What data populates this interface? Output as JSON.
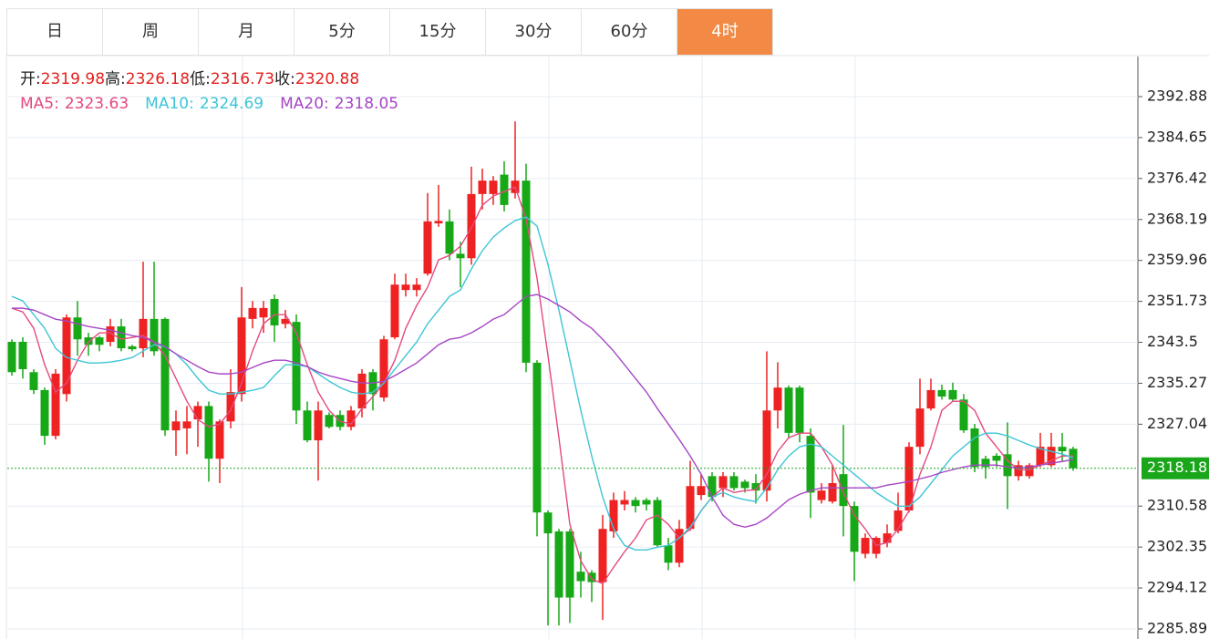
{
  "tabs": {
    "items": [
      "日",
      "周",
      "月",
      "5分",
      "15分",
      "30分",
      "60分",
      "4时"
    ],
    "active": 7
  },
  "chart_data": {
    "type": "candlestick",
    "info": [
      {
        "label": "开:",
        "value": 2319.98
      },
      {
        "label": "高:",
        "value": 2326.18
      },
      {
        "label": "低:",
        "value": 2316.73
      },
      {
        "label": "收:",
        "value": 2320.88
      }
    ],
    "info_color": "#e3201c",
    "open": [
      2343.6,
      2343.6,
      2337.5,
      2333.9,
      2324.7,
      2333.1,
      2348.5,
      2344.5,
      2344.5,
      2343.6,
      2346.7,
      2342.7,
      2342.3,
      2348.2,
      2348.2,
      2325.8,
      2326.2,
      2328.0,
      2330.7,
      2320.1,
      2327.6,
      2333.1,
      2348.2,
      2348.5,
      2352.2,
      2347.2,
      2347.6,
      2329.8,
      2323.8,
      2328.9,
      2328.9,
      2326.5,
      2330.2,
      2337.5,
      2332.4,
      2344.5,
      2354.0,
      2354.0,
      2357.3,
      2367.4,
      2367.8,
      2361.3,
      2360.4,
      2373.3,
      2373.3,
      2377.2,
      2373.5,
      2376.0,
      2339.4,
      2309.3,
      2305.5,
      2305.5,
      2297.4,
      2297.2,
      2295.3,
      2305.5,
      2310.9,
      2311.8,
      2311.8,
      2311.8,
      2302.7,
      2299.2,
      2306.0,
      2312.8,
      2316.6,
      2314.2,
      2316.6,
      2315.5,
      2315.2,
      2313.7,
      2329.8,
      2334.4,
      2334.4,
      2324.7,
      2311.8,
      2311.5,
      2317.0,
      2310.6,
      2301.0,
      2301.0,
      2303.2,
      2305.6,
      2309.7,
      2322.5,
      2330.2,
      2333.9,
      2333.9,
      2332.0,
      2326.2,
      2320.1,
      2320.7,
      2321.0,
      2316.6,
      2316.6,
      2318.8,
      2318.8,
      2322.5,
      2322.1
    ],
    "high": [
      2344.1,
      2344.5,
      2338.1,
      2334.4,
      2338.1,
      2349.1,
      2351.8,
      2345.4,
      2344.8,
      2348.2,
      2348.2,
      2343.0,
      2359.7,
      2359.7,
      2348.5,
      2329.8,
      2330.7,
      2331.6,
      2331.6,
      2328.0,
      2338.1,
      2354.6,
      2351.8,
      2351.8,
      2353.1,
      2350.0,
      2349.1,
      2331.6,
      2331.6,
      2329.4,
      2329.8,
      2330.7,
      2338.1,
      2338.1,
      2344.8,
      2357.3,
      2357.3,
      2356.4,
      2373.5,
      2375.1,
      2370.2,
      2363.7,
      2378.8,
      2378.4,
      2376.9,
      2379.9,
      2387.9,
      2379.4,
      2339.9,
      2309.7,
      2306.0,
      2306.0,
      2301.4,
      2297.7,
      2308.8,
      2313.3,
      2313.6,
      2312.4,
      2312.2,
      2312.4,
      2304.2,
      2307.8,
      2319.7,
      2317.0,
      2317.4,
      2317.4,
      2317.4,
      2315.9,
      2317.0,
      2341.7,
      2339.5,
      2334.8,
      2334.8,
      2326.2,
      2315.2,
      2318.8,
      2326.9,
      2311.5,
      2305.1,
      2304.5,
      2306.9,
      2313.3,
      2323.4,
      2336.2,
      2336.2,
      2335.0,
      2335.4,
      2333.1,
      2327.1,
      2320.7,
      2321.2,
      2327.4,
      2319.7,
      2319.2,
      2325.3,
      2325.3,
      2325.3,
      2322.5
    ],
    "low": [
      2336.8,
      2336.2,
      2333.1,
      2322.9,
      2324.0,
      2331.6,
      2340.8,
      2340.8,
      2341.7,
      2342.7,
      2341.7,
      2341.7,
      2340.5,
      2340.8,
      2324.7,
      2320.7,
      2321.0,
      2322.5,
      2315.5,
      2315.2,
      2326.2,
      2331.6,
      2346.3,
      2345.4,
      2343.6,
      2346.3,
      2327.1,
      2323.4,
      2315.7,
      2326.2,
      2325.8,
      2325.8,
      2328.4,
      2329.8,
      2331.6,
      2344.1,
      2352.7,
      2352.7,
      2356.9,
      2366.7,
      2360.0,
      2354.6,
      2359.1,
      2370.2,
      2371.1,
      2369.8,
      2372.4,
      2337.5,
      2304.5,
      2286.6,
      2286.6,
      2287.1,
      2292.2,
      2291.3,
      2287.7,
      2304.2,
      2309.7,
      2309.3,
      2309.7,
      2302.3,
      2297.7,
      2298.3,
      2305.6,
      2311.8,
      2311.5,
      2312.4,
      2313.7,
      2313.3,
      2311.1,
      2311.5,
      2326.2,
      2324.3,
      2323.4,
      2308.2,
      2311.1,
      2311.1,
      2304.5,
      2295.5,
      2300.1,
      2300.1,
      2302.3,
      2305.1,
      2309.3,
      2321.0,
      2329.8,
      2332.0,
      2331.6,
      2325.3,
      2317.4,
      2316.1,
      2318.4,
      2310.0,
      2315.7,
      2316.1,
      2318.4,
      2318.4,
      2319.7,
      2317.7
    ],
    "close": [
      2337.5,
      2338.1,
      2333.9,
      2324.7,
      2337.2,
      2348.5,
      2344.1,
      2343.0,
      2343.0,
      2346.7,
      2342.3,
      2342.1,
      2348.2,
      2341.7,
      2325.8,
      2327.6,
      2327.6,
      2330.7,
      2320.1,
      2327.6,
      2333.5,
      2348.5,
      2350.4,
      2350.4,
      2346.9,
      2348.2,
      2329.8,
      2323.8,
      2329.8,
      2326.5,
      2326.5,
      2329.8,
      2337.2,
      2333.1,
      2344.1,
      2355.1,
      2355.1,
      2355.1,
      2367.8,
      2367.9,
      2361.3,
      2360.4,
      2373.3,
      2376.0,
      2376.0,
      2371.1,
      2376.0,
      2339.4,
      2309.3,
      2305.1,
      2292.2,
      2292.2,
      2295.5,
      2295.3,
      2306.0,
      2311.8,
      2311.8,
      2310.6,
      2310.9,
      2302.7,
      2299.2,
      2306.0,
      2314.6,
      2314.6,
      2312.4,
      2316.6,
      2314.2,
      2314.2,
      2313.7,
      2329.8,
      2334.4,
      2325.3,
      2325.3,
      2313.3,
      2313.7,
      2315.2,
      2310.6,
      2301.4,
      2304.2,
      2304.2,
      2305.1,
      2309.7,
      2322.5,
      2330.2,
      2333.9,
      2332.6,
      2332.0,
      2325.8,
      2318.4,
      2318.4,
      2319.7,
      2316.6,
      2318.8,
      2318.8,
      2322.5,
      2322.5,
      2321.6,
      2318.18
    ],
    "up_color": "#ee2222",
    "down_color": "#17a817",
    "series": [
      {
        "name": "MA5:",
        "color": "#e4497f",
        "current": 2323.63,
        "values": [
          2350.35,
          2349.61,
          2346.31,
          2338.99,
          2333.49,
          2335.32,
          2339.9,
          2343.56,
          2345.4,
          2345.4,
          2344.11,
          2344.48,
          2344.85,
          2343.56,
          2340.82,
          2336.24,
          2331.65,
          2327.99,
          2326.52,
          2327.07,
          2329.82,
          2335.32,
          2341.73,
          2347.23,
          2349.06,
          2349.06,
          2345.4,
          2338.99,
          2333.49,
          2329.82,
          2327.62,
          2327.07,
          2330.19,
          2332.57,
          2335.32,
          2339.9,
          2346.31,
          2350.9,
          2354.57,
          2360.07,
          2360.98,
          2362.82,
          2366.48,
          2371.06,
          2372.9,
          2373.81,
          2374.73,
          2368.32,
          2356.4,
          2340.82,
          2324.32,
          2306.91,
          2299.58,
          2295.91,
          2294.99,
          2298.29,
          2301.41,
          2304.16,
          2307.82,
          2308.74,
          2306.91,
          2304.16,
          2305.99,
          2309.66,
          2312.41,
          2314.24,
          2313.32,
          2313.69,
          2313.87,
          2316.99,
          2321.57,
          2324.32,
          2325.24,
          2325.24,
          2322.49,
          2318.82,
          2313.32,
          2308.74,
          2305.99,
          2302.69,
          2303.24,
          2305.99,
          2309.66,
          2316.99,
          2322.49,
          2329.82,
          2331.65,
          2331.65,
          2329.82,
          2325.24,
          2322.49,
          2319.74,
          2317.9,
          2317.9,
          2318.82,
          2319.74,
          2320.65,
          2320.65
        ]
      },
      {
        "name": "MA10:",
        "color": "#3ec5d6",
        "current": 2324.69,
        "values": [
          2352.73,
          2351.82,
          2349.06,
          2346.31,
          2342.28,
          2340.45,
          2339.9,
          2339.35,
          2339.35,
          2339.53,
          2339.9,
          2340.45,
          2341.73,
          2343.01,
          2342.65,
          2341.18,
          2338.99,
          2336.24,
          2333.86,
          2333.12,
          2333.12,
          2333.49,
          2333.86,
          2334.41,
          2336.79,
          2338.99,
          2338.99,
          2338.62,
          2337.16,
          2335.69,
          2334.41,
          2333.49,
          2333.12,
          2333.49,
          2335.32,
          2338.07,
          2340.82,
          2343.56,
          2347.23,
          2349.98,
          2352.73,
          2354.02,
          2358.23,
          2361.9,
          2364.65,
          2366.48,
          2367.95,
          2368.69,
          2366.85,
          2359.15,
          2349.98,
          2339.9,
          2329.82,
          2320.65,
          2312.41,
          2305.99,
          2302.69,
          2301.77,
          2301.77,
          2302.32,
          2302.69,
          2304.16,
          2306.36,
          2309.66,
          2312.41,
          2313.32,
          2312.41,
          2311.86,
          2311.49,
          2314.24,
          2317.9,
          2320.65,
          2322.49,
          2323.04,
          2322.49,
          2320.65,
          2318.82,
          2316.99,
          2315.15,
          2313.32,
          2311.86,
          2310.57,
          2310.57,
          2312.41,
          2315.15,
          2317.9,
          2320.65,
          2322.49,
          2324.32,
          2325.24,
          2325.24,
          2324.69,
          2323.77,
          2322.86,
          2322.12,
          2321.57,
          2321.02,
          2320.29
        ]
      },
      {
        "name": "MA20:",
        "color": "#a646c6",
        "current": 2318.05,
        "values": [
          2350.35,
          2350.35,
          2349.98,
          2349.06,
          2348.15,
          2347.78,
          2347.23,
          2346.68,
          2346.31,
          2345.95,
          2345.4,
          2344.85,
          2344.48,
          2343.56,
          2342.65,
          2341.18,
          2339.9,
          2338.62,
          2337.52,
          2337.16,
          2337.16,
          2337.52,
          2338.44,
          2339.35,
          2339.9,
          2339.9,
          2339.35,
          2338.62,
          2337.52,
          2336.79,
          2336.24,
          2335.69,
          2335.32,
          2335.32,
          2335.69,
          2336.79,
          2338.07,
          2339.35,
          2341.18,
          2343.01,
          2344.11,
          2344.48,
          2345.4,
          2346.68,
          2348.15,
          2349.06,
          2350.9,
          2352.73,
          2353.1,
          2352.18,
          2350.9,
          2349.61,
          2347.78,
          2346.31,
          2344.11,
          2341.73,
          2338.99,
          2336.24,
          2333.49,
          2330.19,
          2327.07,
          2323.96,
          2320.65,
          2316.99,
          2312.41,
          2308.74,
          2306.91,
          2306.36,
          2306.91,
          2308.19,
          2310.02,
          2311.86,
          2312.96,
          2313.69,
          2314.24,
          2314.24,
          2314.24,
          2314.24,
          2314.24,
          2314.24,
          2314.79,
          2315.15,
          2315.52,
          2316.07,
          2316.62,
          2317.35,
          2317.9,
          2318.45,
          2318.82,
          2318.82,
          2318.82,
          2318.45,
          2318.27,
          2318.45,
          2318.82,
          2319.19,
          2319.55,
          2319.92
        ]
      }
    ],
    "last_price": 2318.18,
    "last_color": "#1aa61a",
    "ylim": [
      2283.87,
      2400.94
    ],
    "yticks": [
      2392.88,
      2384.65,
      2376.42,
      2368.19,
      2359.96,
      2351.73,
      2343.5,
      2335.27,
      2327.04,
      2310.58,
      2302.35,
      2294.12,
      2285.89
    ],
    "grid": true
  }
}
